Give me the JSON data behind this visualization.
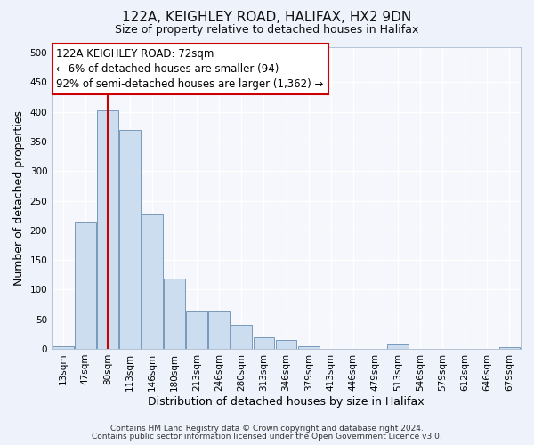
{
  "title": "122A, KEIGHLEY ROAD, HALIFAX, HX2 9DN",
  "subtitle": "Size of property relative to detached houses in Halifax",
  "xlabel": "Distribution of detached houses by size in Halifax",
  "ylabel": "Number of detached properties",
  "bar_labels": [
    "13sqm",
    "47sqm",
    "80sqm",
    "113sqm",
    "146sqm",
    "180sqm",
    "213sqm",
    "246sqm",
    "280sqm",
    "313sqm",
    "346sqm",
    "379sqm",
    "413sqm",
    "446sqm",
    "479sqm",
    "513sqm",
    "546sqm",
    "579sqm",
    "612sqm",
    "646sqm",
    "679sqm"
  ],
  "bar_values": [
    5,
    215,
    403,
    370,
    227,
    119,
    65,
    65,
    40,
    20,
    15,
    5,
    0,
    0,
    0,
    8,
    0,
    0,
    0,
    0,
    3
  ],
  "bar_color": "#ccddf0",
  "bar_edge_color": "#7799bb",
  "vline_x": 2,
  "vline_color": "#cc0000",
  "annotation_line1": "122A KEIGHLEY ROAD: 72sqm",
  "annotation_line2": "← 6% of detached houses are smaller (94)",
  "annotation_line3": "92% of semi-detached houses are larger (1,362) →",
  "annotation_box_color": "#ffffff",
  "annotation_box_edge_color": "#cc0000",
  "ylim": [
    0,
    510
  ],
  "yticks": [
    0,
    50,
    100,
    150,
    200,
    250,
    300,
    350,
    400,
    450,
    500
  ],
  "footer1": "Contains HM Land Registry data © Crown copyright and database right 2024.",
  "footer2": "Contains public sector information licensed under the Open Government Licence v3.0.",
  "bg_color": "#eef2fb",
  "plot_bg_color": "#f5f7fc",
  "title_fontsize": 11,
  "subtitle_fontsize": 9,
  "axis_label_fontsize": 9,
  "tick_fontsize": 7.5,
  "footer_fontsize": 6.5,
  "annotation_fontsize": 8.5
}
